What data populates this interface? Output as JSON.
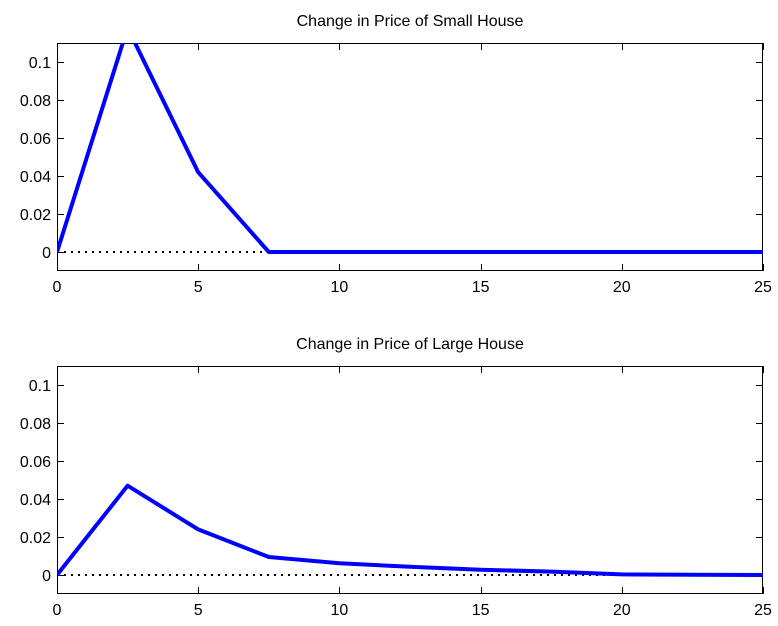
{
  "chart_data": [
    {
      "type": "line",
      "title": "Change in Price of Small House",
      "xlabel": "",
      "ylabel": "",
      "xlim": [
        0,
        25
      ],
      "ylim": [
        -0.01,
        0.11
      ],
      "xticks": [
        0,
        5,
        10,
        15,
        20,
        25
      ],
      "xtick_labels": [
        "0",
        "5",
        "10",
        "15",
        "20",
        "25"
      ],
      "yticks": [
        0,
        0.02,
        0.04,
        0.06,
        0.08,
        0.1
      ],
      "ytick_labels": [
        "0",
        "0.02",
        "0.04",
        "0.06",
        "0.08",
        "0.1"
      ],
      "grid": false,
      "reference_line": {
        "y": 0,
        "style": "dotted",
        "color": "#000000"
      },
      "series": [
        {
          "color": "#0000ff",
          "x": [
            0,
            2.5,
            5,
            7.5,
            10,
            12.5,
            15,
            17.5,
            20,
            22.5,
            25
          ],
          "y": [
            0,
            0.118,
            0.042,
            0,
            0,
            0,
            0,
            0,
            0,
            0,
            0
          ]
        }
      ]
    },
    {
      "type": "line",
      "title": "Change in Price of Large House",
      "xlabel": "",
      "ylabel": "",
      "xlim": [
        0,
        25
      ],
      "ylim": [
        -0.01,
        0.11
      ],
      "xticks": [
        0,
        5,
        10,
        15,
        20,
        25
      ],
      "xtick_labels": [
        "0",
        "5",
        "10",
        "15",
        "20",
        "25"
      ],
      "yticks": [
        0,
        0.02,
        0.04,
        0.06,
        0.08,
        0.1
      ],
      "ytick_labels": [
        "0",
        "0.02",
        "0.04",
        "0.06",
        "0.08",
        "0.1"
      ],
      "grid": false,
      "reference_line": {
        "y": 0,
        "style": "dotted",
        "color": "#000000"
      },
      "series": [
        {
          "color": "#0000ff",
          "x": [
            0,
            2.5,
            5,
            7.5,
            10,
            12.5,
            15,
            17.5,
            20,
            22.5,
            25
          ],
          "y": [
            0,
            0.047,
            0.024,
            0.0095,
            0.0062,
            0.0043,
            0.0028,
            0.0018,
            0.0003,
            0.0001,
            0
          ]
        }
      ]
    }
  ]
}
